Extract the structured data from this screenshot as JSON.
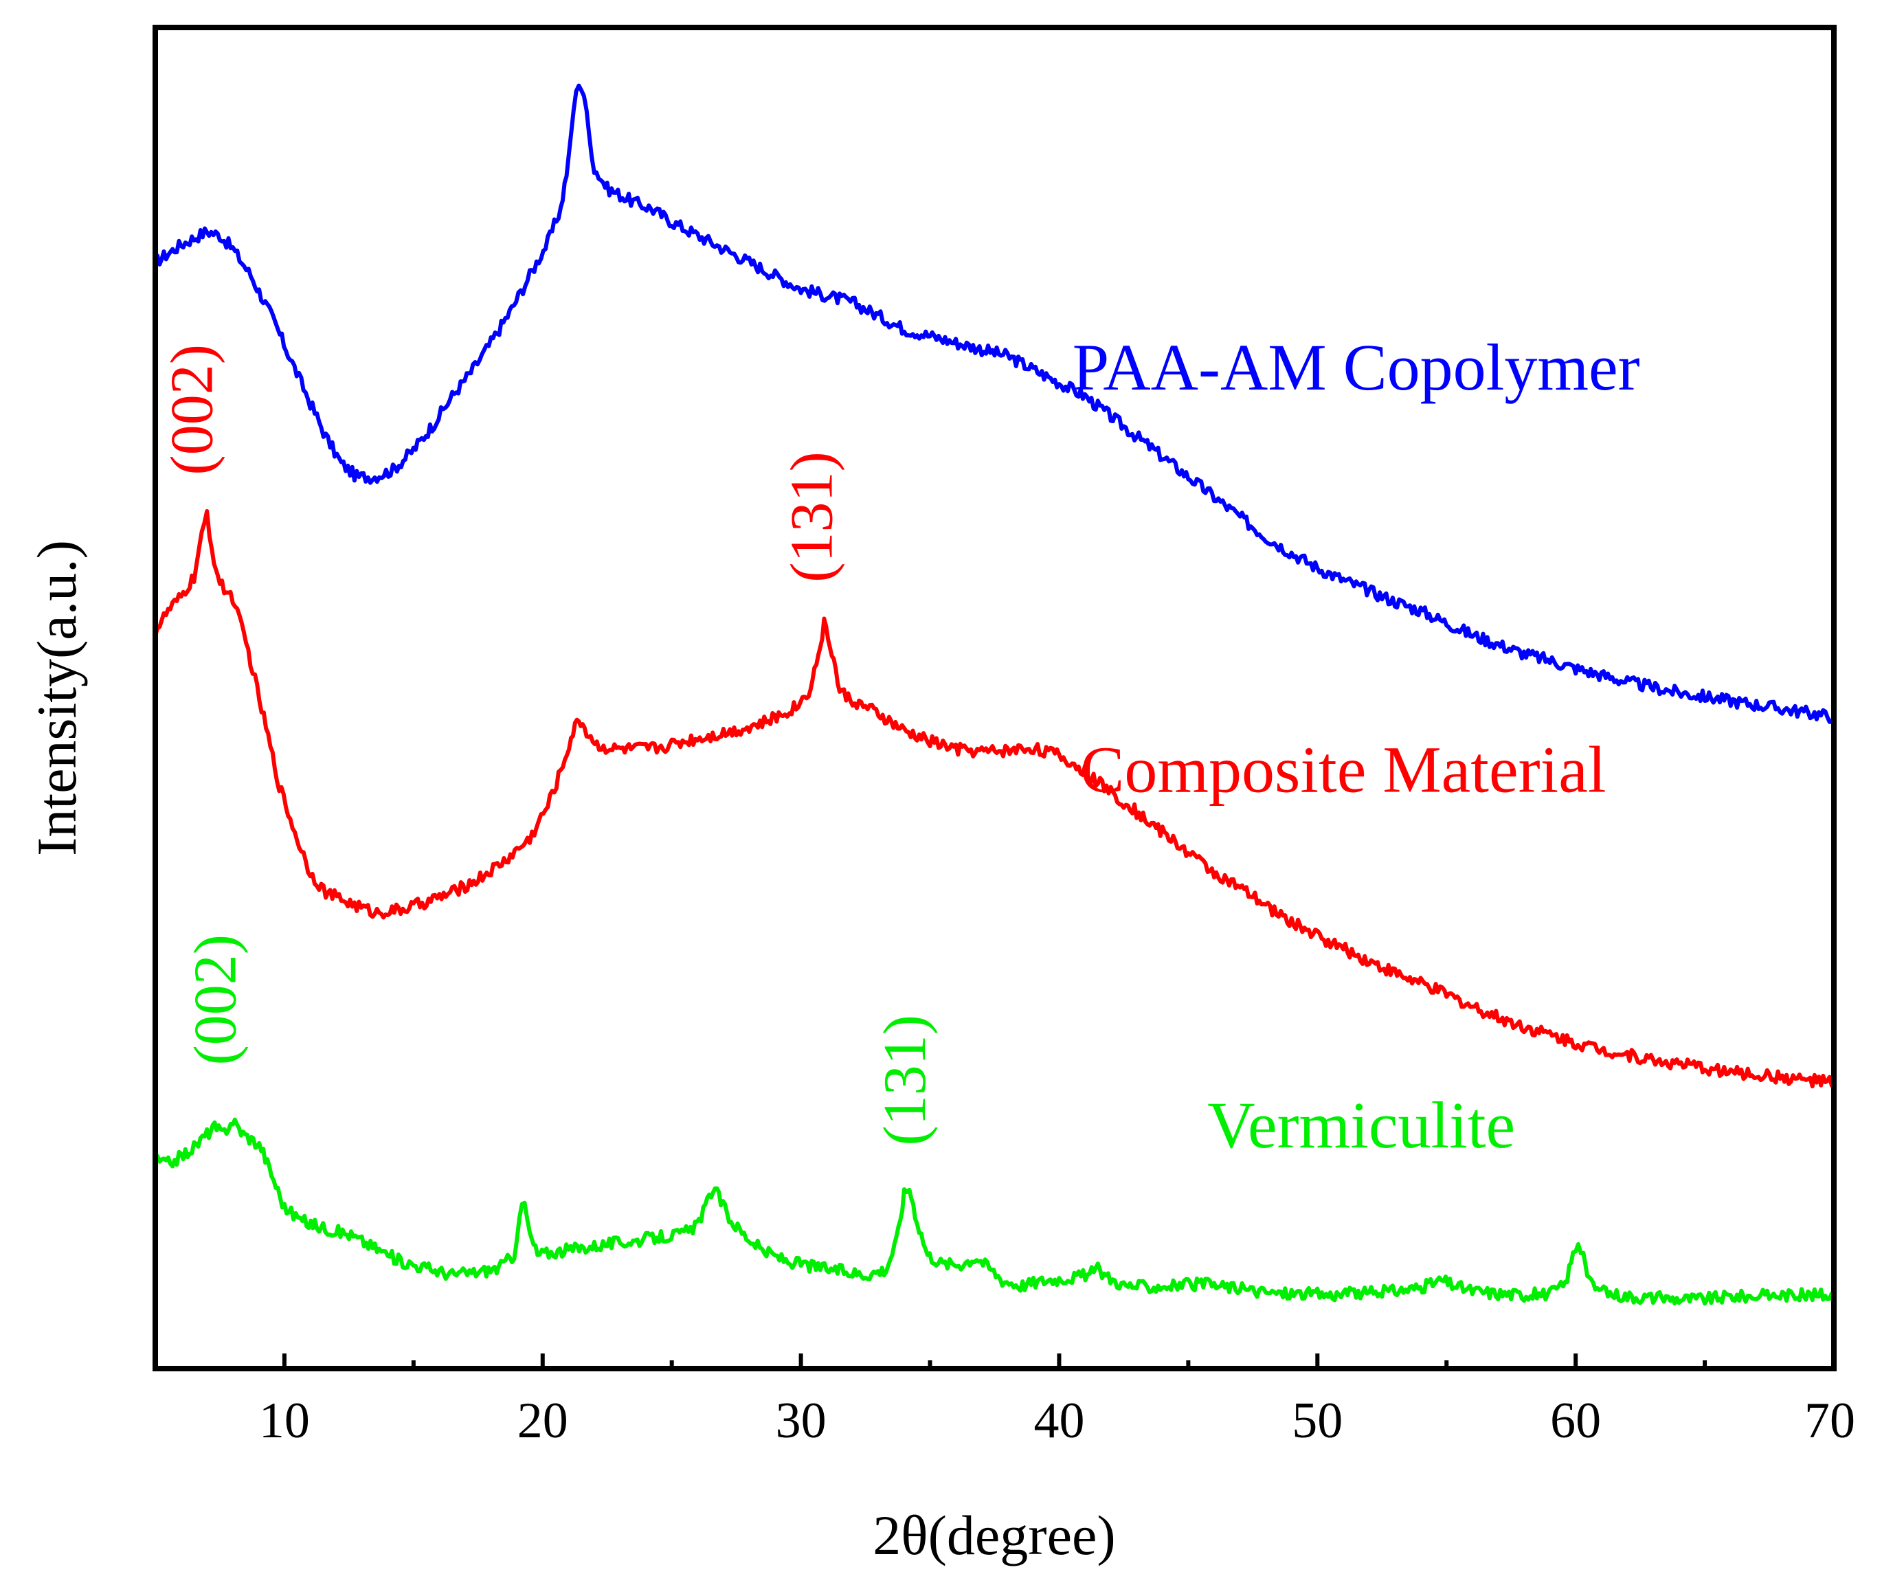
{
  "chart_data": {
    "type": "line",
    "xlabel": "2θ(degree)",
    "ylabel": "Intensity(a.u.)",
    "xlim": [
      5,
      70
    ],
    "ylim": [
      0,
      100
    ],
    "xticks": [
      {
        "value": 10,
        "label": "10"
      },
      {
        "value": 20,
        "label": "20"
      },
      {
        "value": 30,
        "label": "30"
      },
      {
        "value": 40,
        "label": "40"
      },
      {
        "value": 50,
        "label": "50"
      },
      {
        "value": 60,
        "label": "60"
      },
      {
        "value": 70,
        "label": "70"
      }
    ],
    "minor_xticks": [
      15,
      25,
      35,
      45,
      55,
      65
    ],
    "yticks_shown": false,
    "grid": false,
    "series": [
      {
        "name": "PAA-AM Copolymer",
        "color": "#0000ff",
        "label_at": [
          51.5,
          73
        ],
        "x": [
          5,
          6,
          6.5,
          7,
          7.5,
          8,
          8.7,
          9.5,
          10.3,
          11,
          11.6,
          12.2,
          12.8,
          13.5,
          14.2,
          15,
          15.8,
          16.5,
          17.3,
          18,
          18.8,
          19.5,
          20.2,
          20.7,
          21,
          21.2,
          21.4,
          21.6,
          21.8,
          22,
          22.5,
          23,
          23.5,
          24.2,
          25,
          26,
          27,
          28,
          29,
          30,
          31,
          32,
          33,
          34,
          35,
          36,
          37,
          38,
          39,
          40,
          41,
          42,
          43,
          44,
          45,
          46,
          47,
          48,
          49,
          50,
          51,
          52,
          53,
          54,
          55,
          56,
          57,
          58,
          59,
          60,
          61,
          62,
          63,
          64,
          65,
          66,
          67,
          68,
          69,
          70
        ],
        "y": [
          82.5,
          83.8,
          84.3,
          84.8,
          84.5,
          83.5,
          81.5,
          78.5,
          75,
          72,
          69.5,
          67.5,
          66.5,
          66.5,
          67,
          68.5,
          70.5,
          72.5,
          74.5,
          76.5,
          79,
          81.5,
          84,
          86.5,
          90,
          94,
          96,
          95,
          92,
          89.5,
          88,
          87.5,
          87,
          86.5,
          85.5,
          84.5,
          83.5,
          82.5,
          81.5,
          80.5,
          80,
          79.5,
          78.5,
          77.5,
          77,
          76.5,
          76,
          75.5,
          74.5,
          73.5,
          72.5,
          71,
          69.5,
          68,
          66.5,
          65,
          63.5,
          62,
          60.8,
          59.7,
          58.8,
          58,
          57.2,
          56.5,
          55.6,
          54.7,
          54,
          53.3,
          52.8,
          52.2,
          51.7,
          51.2,
          50.8,
          50.4,
          50.1,
          49.8,
          49.5,
          49.2,
          48.9,
          48.6
        ]
      },
      {
        "name": "Composite Material",
        "color": "#ff0000",
        "label_at": [
          51,
          43
        ],
        "x": [
          5,
          5.5,
          6,
          6.5,
          6.8,
          7.0,
          7.2,
          7.5,
          8,
          8.6,
          9.2,
          9.8,
          10.4,
          11,
          11.6,
          12.2,
          12.8,
          13.5,
          14.5,
          15.5,
          16.5,
          17.5,
          18.5,
          19.5,
          20.2,
          20.7,
          21.1,
          21.4,
          21.7,
          22.1,
          22.7,
          23.5,
          24.5,
          25.5,
          26.5,
          27.5,
          28.5,
          29.3,
          29.9,
          30.3,
          30.6,
          30.9,
          31.2,
          31.5,
          32,
          33,
          34,
          35,
          36,
          37,
          38,
          39,
          40,
          41,
          42,
          43,
          44,
          45,
          46,
          47,
          48,
          49,
          50,
          51,
          52,
          53,
          54,
          55,
          56,
          57,
          58,
          59,
          60,
          61,
          62,
          63,
          64,
          65,
          66,
          67,
          68,
          69,
          70
        ],
        "y": [
          55,
          56.5,
          57.5,
          59,
          62,
          63.8,
          61,
          58.5,
          57.5,
          53.5,
          48.5,
          43.5,
          40,
          37,
          35.5,
          35,
          34.5,
          34,
          34.2,
          34.8,
          35.5,
          36.5,
          37.8,
          39.5,
          42,
          44.5,
          47,
          48.5,
          47.5,
          46.5,
          46.2,
          46.2,
          46.3,
          46.8,
          47.2,
          47.6,
          48.1,
          48.8,
          49.5,
          50.5,
          52.5,
          55.5,
          53.5,
          50.5,
          49.8,
          48.8,
          47.5,
          46.8,
          46.2,
          46,
          46.1,
          46.3,
          45.7,
          44.5,
          43,
          41.5,
          40,
          38.5,
          37,
          35.8,
          34.5,
          33.3,
          32.3,
          31.3,
          30.4,
          29.5,
          28.7,
          27.9,
          27,
          26.2,
          25.5,
          24.9,
          24.3,
          23.8,
          23.4,
          23,
          22.7,
          22.4,
          22.1,
          21.9,
          21.7,
          21.5,
          21.3
        ]
      },
      {
        "name": "Vermiculite",
        "color": "#00ee00",
        "label_at": [
          51.7,
          16.5
        ],
        "x": [
          5,
          5.5,
          6,
          6.5,
          7,
          7.3,
          7.6,
          8,
          8.4,
          8.8,
          9.1,
          9.5,
          10,
          10.7,
          11.5,
          12.5,
          13.5,
          14.5,
          15.5,
          16.5,
          17.5,
          18.3,
          18.9,
          19.1,
          19.3,
          19.5,
          19.8,
          20.5,
          21.5,
          22.5,
          23.5,
          24.5,
          25.3,
          25.9,
          26.3,
          26.6,
          26.9,
          27.3,
          27.8,
          28.5,
          29.5,
          30.5,
          31.5,
          32.5,
          33.3,
          33.7,
          34.0,
          34.2,
          34.5,
          34.9,
          35.5,
          36.2,
          36.8,
          37.3,
          37.8,
          38.5,
          39.5,
          40.5,
          41.1,
          41.5,
          41.9,
          42.5,
          43.5,
          44.5,
          45.5,
          46.5,
          47.5,
          48.5,
          49.5,
          50.5,
          51.5,
          52.5,
          53.5,
          54.3,
          54.8,
          55.3,
          56,
          57,
          58,
          59,
          59.6,
          59.9,
          60.1,
          60.3,
          60.6,
          61,
          62,
          63,
          64,
          65,
          66,
          67,
          68,
          69,
          70
        ],
        "y": [
          15.5,
          15.3,
          15.8,
          16.5,
          17.5,
          18,
          17.5,
          18.5,
          17.5,
          17,
          16.5,
          14.5,
          12,
          11,
          10.5,
          10,
          9,
          8,
          7.5,
          7,
          7.2,
          7.5,
          8.5,
          11.5,
          12.3,
          10,
          8.5,
          8.7,
          9,
          9.3,
          9.5,
          9.8,
          10,
          10.5,
          12,
          13.5,
          12.5,
          11,
          10,
          8.8,
          8,
          7.6,
          7.3,
          7,
          7.4,
          9.5,
          13,
          13.5,
          11,
          8.5,
          7.8,
          7.8,
          8.3,
          7.5,
          6.6,
          6.2,
          6.6,
          6.8,
          7,
          7.4,
          6.8,
          6.2,
          6.1,
          6.2,
          6.3,
          6.1,
          5.8,
          5.6,
          5.6,
          5.5,
          5.6,
          5.7,
          5.9,
          6.2,
          6.6,
          6.2,
          5.8,
          5.6,
          5.5,
          5.6,
          6.3,
          8.5,
          9.5,
          8.2,
          6.3,
          5.7,
          5.4,
          5.3,
          5.2,
          5.2,
          5.4,
          5.4,
          5.5,
          5.5,
          5.5
        ]
      }
    ],
    "annotations": [
      {
        "text": "(002)",
        "color": "#ff0000",
        "x": 7.2,
        "y": 71.5,
        "rotation": -90
      },
      {
        "text": "(131)",
        "color": "#ff0000",
        "x": 31.2,
        "y": 63.5,
        "rotation": -90
      },
      {
        "text": "(002)",
        "color": "#00ee00",
        "x": 8.1,
        "y": 27.5,
        "rotation": -90
      },
      {
        "text": "(131)",
        "color": "#00ee00",
        "x": 34.8,
        "y": 21.5,
        "rotation": -90
      }
    ]
  }
}
